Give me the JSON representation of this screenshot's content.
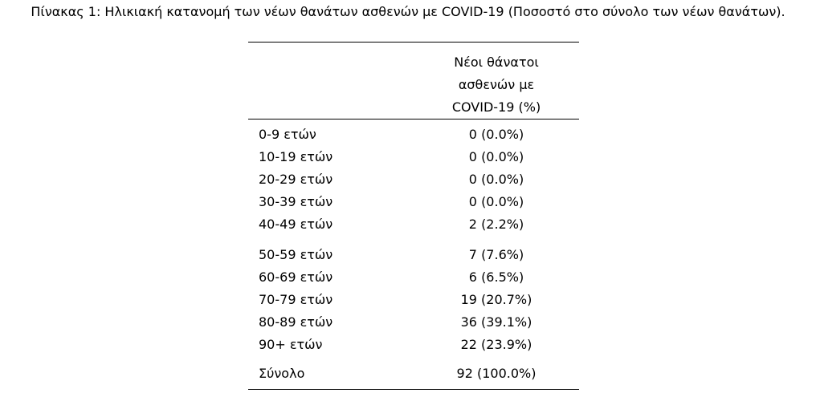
{
  "caption": "Πίνακας 1: Ηλικιακή κατανομή των νέων θανάτων ασθενών με COVID-19 (Ποσοστό στο σύνολο των νέων θανάτων).",
  "table": {
    "column_header": [
      "Νέοι θάνατοι",
      "ασθενών με",
      "COVID-19 (%)"
    ],
    "rows": [
      {
        "label": "0-9 ετών",
        "value": "0 (0.0%)"
      },
      {
        "label": "10-19 ετών",
        "value": "0 (0.0%)"
      },
      {
        "label": "20-29 ετών",
        "value": "0 (0.0%)"
      },
      {
        "label": "30-39 ετών",
        "value": "0 (0.0%)"
      },
      {
        "label": "40-49 ετών",
        "value": "2 (2.2%)"
      },
      {
        "label": "50-59 ετών",
        "value": "7 (7.6%)"
      },
      {
        "label": "60-69 ετών",
        "value": "6 (6.5%)"
      },
      {
        "label": "70-79 ετών",
        "value": "19 (20.7%)"
      },
      {
        "label": "80-89 ετών",
        "value": "36 (39.1%)"
      },
      {
        "label": "90+ ετών",
        "value": "22 (23.9%)"
      }
    ],
    "total": {
      "label": "Σύνολο",
      "value": "92 (100.0%)"
    }
  }
}
